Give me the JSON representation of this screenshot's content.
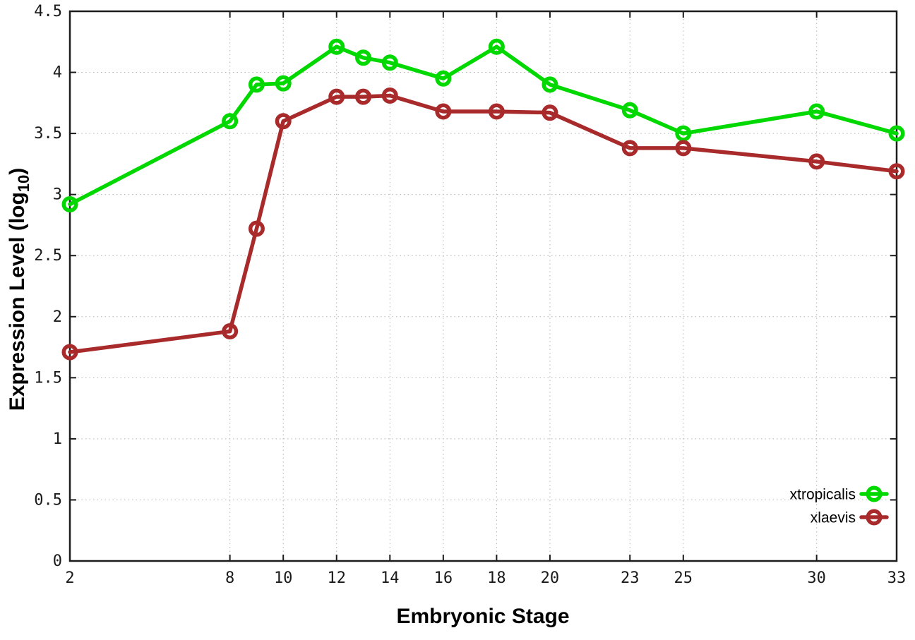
{
  "figure": {
    "background": "#ffffff",
    "axis_color": "#1c1c1c",
    "grid_color": "#b3b3b3",
    "text_color": "#1a1a1a"
  },
  "chart_data": {
    "type": "line",
    "title": "",
    "xlabel": "Embryonic Stage",
    "ylabel": "Expression Level (log10)",
    "ylabel_parts": {
      "pre": "Expression Level (log",
      "sub": "10",
      "post": ")"
    },
    "x": [
      2,
      8,
      9,
      10,
      12,
      13,
      14,
      16,
      18,
      20,
      23,
      25,
      30,
      33
    ],
    "series": [
      {
        "name": "xtropicalis",
        "color": "#00d800",
        "values": [
          2.92,
          3.6,
          3.9,
          3.91,
          4.21,
          4.12,
          4.08,
          3.95,
          4.21,
          3.9,
          3.69,
          3.5,
          3.68,
          3.5
        ]
      },
      {
        "name": "xlaevis",
        "color": "#a82a2b",
        "values": [
          1.71,
          1.88,
          2.72,
          3.6,
          3.8,
          3.8,
          3.81,
          3.68,
          3.68,
          3.67,
          3.38,
          3.38,
          3.27,
          3.19
        ]
      }
    ],
    "xticks": [
      2,
      8,
      10,
      12,
      14,
      16,
      18,
      20,
      23,
      25,
      30,
      33
    ],
    "yticks": [
      0,
      0.5,
      1,
      1.5,
      2,
      2.5,
      3,
      3.5,
      4,
      4.5
    ],
    "xlim": [
      2,
      33
    ],
    "ylim": [
      0,
      4.5
    ],
    "grid": true,
    "legend_position": "bottom-right"
  }
}
